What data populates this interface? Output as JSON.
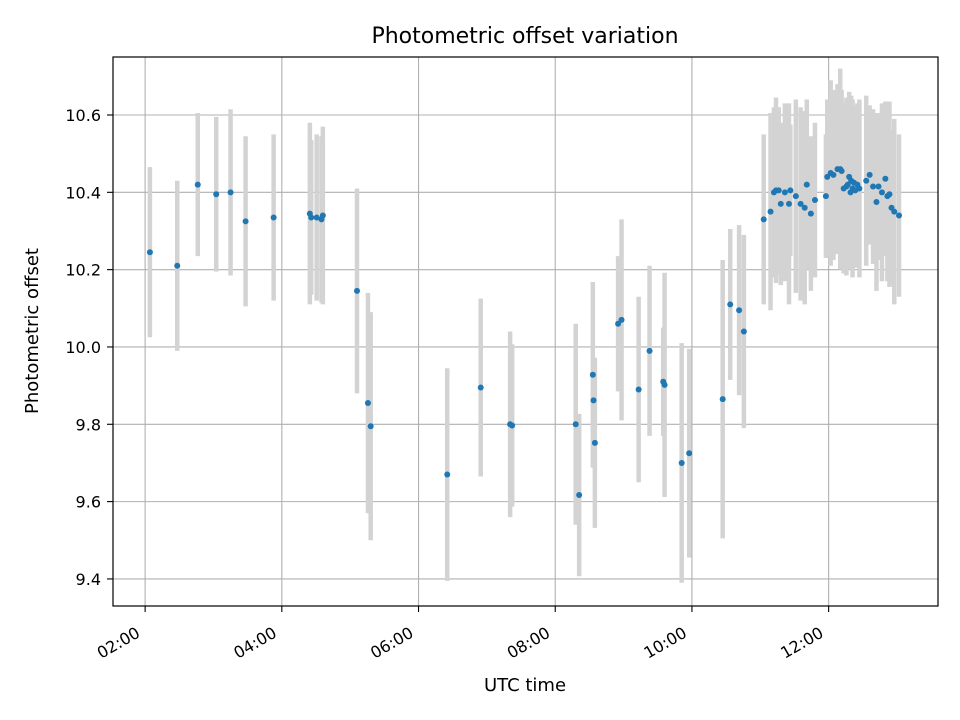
{
  "chart_data": {
    "type": "scatter",
    "title": "Photometric offset variation",
    "xlabel": "UTC time",
    "ylabel": "Photometric offset",
    "x_unit": "hours (UTC)",
    "xlim": [
      1.53,
      13.6
    ],
    "ylim": [
      9.33,
      10.75
    ],
    "x_ticks": [
      2,
      4,
      6,
      8,
      10,
      12
    ],
    "x_tick_labels": [
      "02:00",
      "04:00",
      "06:00",
      "08:00",
      "10:00",
      "12:00"
    ],
    "y_ticks": [
      9.4,
      9.6,
      9.8,
      10.0,
      10.2,
      10.4,
      10.6
    ],
    "y_tick_labels": [
      "9.4",
      "9.6",
      "9.8",
      "10.0",
      "10.2",
      "10.4",
      "10.6"
    ],
    "grid": true,
    "colors": {
      "point": "#1f77b4",
      "errorbar": "#d3d3d3",
      "grid": "#b0b0b0"
    },
    "series": [
      {
        "x": [
          2.07,
          2.47,
          2.77,
          3.04,
          3.25,
          3.47,
          3.88,
          4.41,
          4.43,
          4.51,
          4.58,
          4.6,
          5.1,
          5.26,
          5.3,
          6.42,
          6.91,
          7.34,
          7.37,
          8.3,
          8.35,
          8.55,
          8.56,
          8.58,
          8.92,
          8.97,
          9.22,
          9.38,
          9.58,
          9.6,
          9.85,
          9.96,
          10.45,
          10.56,
          10.69,
          10.76,
          11.05,
          11.15,
          11.2,
          11.23,
          11.27,
          11.3,
          11.36,
          11.42,
          11.44,
          11.52,
          11.59,
          11.65,
          11.68,
          11.74,
          11.8,
          11.96,
          11.98,
          12.03,
          12.07,
          12.13,
          12.17,
          12.19,
          12.22,
          12.26,
          12.28,
          12.3,
          12.32,
          12.33,
          12.35,
          12.37,
          12.39,
          12.42,
          12.45,
          12.55,
          12.6,
          12.65,
          12.7,
          12.73,
          12.78,
          12.83,
          12.86,
          12.89,
          12.92,
          12.96,
          13.03
        ],
        "y": [
          10.245,
          10.21,
          10.42,
          10.395,
          10.4,
          10.325,
          10.335,
          10.345,
          10.335,
          10.335,
          10.33,
          10.34,
          10.145,
          9.855,
          9.795,
          9.67,
          9.895,
          9.8,
          9.797,
          9.8,
          9.617,
          9.928,
          9.862,
          9.752,
          10.06,
          10.07,
          9.89,
          9.99,
          9.91,
          9.902,
          9.7,
          9.725,
          9.865,
          10.11,
          10.095,
          10.04,
          10.33,
          10.35,
          10.4,
          10.405,
          10.405,
          10.37,
          10.4,
          10.37,
          10.405,
          10.39,
          10.37,
          10.36,
          10.42,
          10.345,
          10.38,
          10.39,
          10.44,
          10.45,
          10.445,
          10.46,
          10.46,
          10.455,
          10.41,
          10.415,
          10.42,
          10.44,
          10.4,
          10.43,
          10.41,
          10.425,
          10.405,
          10.42,
          10.41,
          10.43,
          10.445,
          10.415,
          10.375,
          10.415,
          10.4,
          10.435,
          10.39,
          10.395,
          10.36,
          10.35,
          10.34
        ],
        "err": [
          0.22,
          0.22,
          0.185,
          0.2,
          0.215,
          0.22,
          0.215,
          0.235,
          0.2,
          0.215,
          0.215,
          0.23,
          0.265,
          0.285,
          0.295,
          0.275,
          0.23,
          0.24,
          0.21,
          0.26,
          0.21,
          0.24,
          0.1,
          0.22,
          0.175,
          0.26,
          0.24,
          0.22,
          0.14,
          0.29,
          0.31,
          0.27,
          0.36,
          0.195,
          0.22,
          0.25,
          0.22,
          0.255,
          0.22,
          0.24,
          0.215,
          0.21,
          0.23,
          0.26,
          0.17,
          0.25,
          0.25,
          0.25,
          0.22,
          0.2,
          0.2,
          0.16,
          0.2,
          0.24,
          0.22,
          0.22,
          0.26,
          0.21,
          0.22,
          0.23,
          0.21,
          0.22,
          0.2,
          0.22,
          0.23,
          0.2,
          0.2,
          0.21,
          0.23,
          0.22,
          0.18,
          0.2,
          0.23,
          0.19,
          0.23,
          0.2,
          0.22,
          0.24,
          0.2,
          0.24,
          0.21
        ]
      }
    ]
  }
}
